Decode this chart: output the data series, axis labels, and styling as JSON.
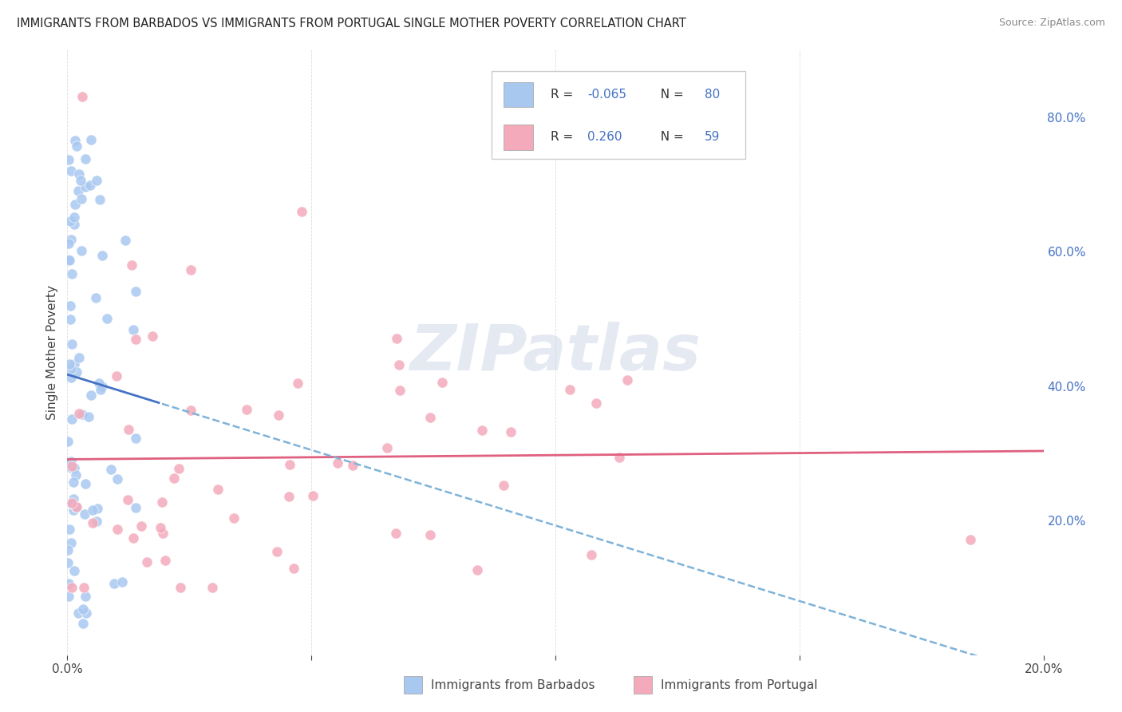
{
  "title": "IMMIGRANTS FROM BARBADOS VS IMMIGRANTS FROM PORTUGAL SINGLE MOTHER POVERTY CORRELATION CHART",
  "source": "Source: ZipAtlas.com",
  "ylabel": "Single Mother Poverty",
  "xlim": [
    0.0,
    0.2
  ],
  "ylim": [
    0.0,
    0.9
  ],
  "x_tick_labels": [
    "0.0%",
    "",
    "",
    "",
    "20.0%"
  ],
  "y_tick_labels_right": [
    "20.0%",
    "40.0%",
    "60.0%",
    "80.0%"
  ],
  "legend_r_barbados": "-0.065",
  "legend_n_barbados": "80",
  "legend_r_portugal": "0.260",
  "legend_n_portugal": "59",
  "barbados_color": "#a8c8f0",
  "portugal_color": "#f4aabb",
  "barbados_line_solid_color": "#4472c4",
  "barbados_line_dash_color": "#7fb3d9",
  "portugal_line_color": "#e06080",
  "watermark": "ZIPatlas",
  "background_color": "#ffffff",
  "grid_color": "#cccccc",
  "label_color": "#4472c4",
  "bottom_label_barbados": "Immigrants from Barbados",
  "bottom_label_portugal": "Immigrants from Portugal"
}
